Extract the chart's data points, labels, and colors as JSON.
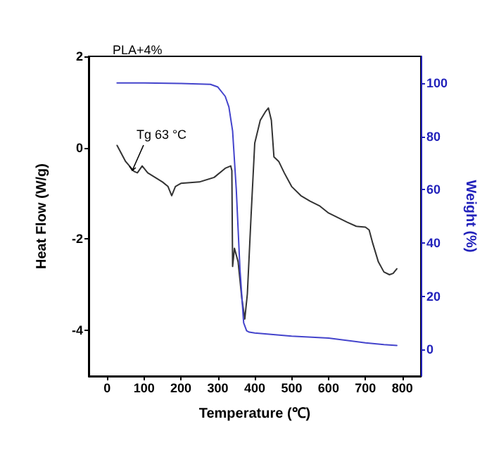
{
  "chart_data": {
    "type": "line",
    "title": "PLA+4%",
    "xlabel": "Temperature (℃)",
    "ylabel": "Heat Flow (W/g)",
    "y2label": "Weight (%)",
    "series": [
      {
        "color": "#333333",
        "x": [
          27,
          50,
          73,
          82,
          95,
          110,
          130,
          150,
          165,
          175,
          185,
          200,
          250,
          290,
          320,
          335,
          338,
          340,
          345,
          355,
          365,
          373,
          380,
          390,
          400,
          415,
          430,
          437,
          445,
          452,
          465,
          480,
          500,
          525,
          550,
          575,
          600,
          625,
          650,
          675,
          700,
          710,
          720,
          735,
          750,
          765,
          775,
          785
        ],
        "values": [
          0.05,
          -0.3,
          -0.52,
          -0.55,
          -0.4,
          -0.55,
          -0.65,
          -0.75,
          -0.85,
          -1.05,
          -0.85,
          -0.78,
          -0.75,
          -0.65,
          -0.45,
          -0.4,
          -0.5,
          -2.6,
          -2.2,
          -2.5,
          -3.3,
          -3.75,
          -3.2,
          -1.5,
          0.1,
          0.6,
          0.8,
          0.87,
          0.6,
          -0.2,
          -0.3,
          -0.55,
          -0.85,
          -1.05,
          -1.17,
          -1.27,
          -1.43,
          -1.53,
          -1.63,
          -1.72,
          -1.74,
          -1.8,
          -2.1,
          -2.5,
          -2.72,
          -2.78,
          -2.75,
          -2.65
        ]
      },
      {
        "color": "#4444cc",
        "axis": "y2",
        "x": [
          27,
          100,
          200,
          280,
          300,
          320,
          330,
          340,
          350,
          360,
          370,
          378,
          385,
          400,
          500,
          600,
          700,
          750,
          785
        ],
        "values": [
          100,
          100,
          99.8,
          99.5,
          98.5,
          95,
          91,
          82,
          60,
          30,
          10,
          7,
          6.5,
          6.2,
          5,
          4.3,
          2.5,
          1.8,
          1.5
        ]
      }
    ],
    "xlim": [
      -50,
      850
    ],
    "xticks": [
      0,
      100,
      200,
      300,
      400,
      500,
      600,
      700,
      800
    ],
    "ylim": [
      -5,
      2
    ],
    "yticks": [
      -4,
      -2,
      0,
      2
    ],
    "y2lim": [
      -10,
      110
    ],
    "y2ticks": [
      0,
      20,
      40,
      60,
      80,
      100
    ],
    "annotations": [
      {
        "text": "Tg 63 °C",
        "x": 68,
        "y": -0.5
      }
    ],
    "marker": "none",
    "line_style": "solid"
  }
}
